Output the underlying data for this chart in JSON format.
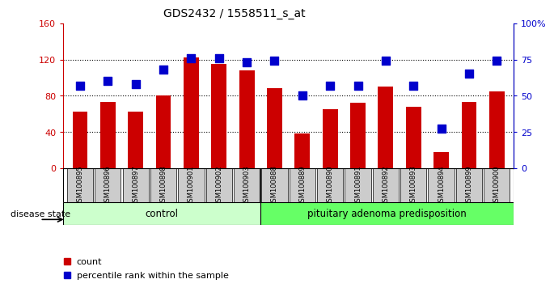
{
  "title": "GDS2432 / 1558511_s_at",
  "samples": [
    "GSM100895",
    "GSM100896",
    "GSM100897",
    "GSM100898",
    "GSM100901",
    "GSM100902",
    "GSM100903",
    "GSM100888",
    "GSM100889",
    "GSM100890",
    "GSM100891",
    "GSM100892",
    "GSM100893",
    "GSM100894",
    "GSM100899",
    "GSM100900"
  ],
  "counts": [
    62,
    73,
    62,
    80,
    122,
    115,
    108,
    88,
    38,
    65,
    72,
    90,
    68,
    18,
    73,
    85
  ],
  "percentiles": [
    57,
    60,
    58,
    68,
    76,
    76,
    73,
    74,
    50,
    57,
    57,
    74,
    57,
    27,
    65,
    74
  ],
  "n_control": 7,
  "n_disease": 9,
  "bar_color": "#cc0000",
  "dot_color": "#0000cc",
  "control_color": "#ccffcc",
  "disease_color": "#66ff66",
  "label_bg_color": "#cccccc",
  "ylim_left": [
    0,
    160
  ],
  "ylim_right": [
    0,
    100
  ],
  "yticks_left": [
    0,
    40,
    80,
    120,
    160
  ],
  "yticks_right": [
    0,
    25,
    50,
    75,
    100
  ],
  "ytick_labels_left": [
    "0",
    "40",
    "80",
    "120",
    "160"
  ],
  "ytick_labels_right": [
    "0",
    "25",
    "50",
    "75",
    "100%"
  ],
  "bar_width": 0.55,
  "dot_size": 55,
  "legend_count_label": "count",
  "legend_pct_label": "percentile rank within the sample",
  "disease_state_label": "disease state",
  "control_label": "control",
  "disease_label": "pituitary adenoma predisposition",
  "gridlines": [
    40,
    80,
    120
  ]
}
